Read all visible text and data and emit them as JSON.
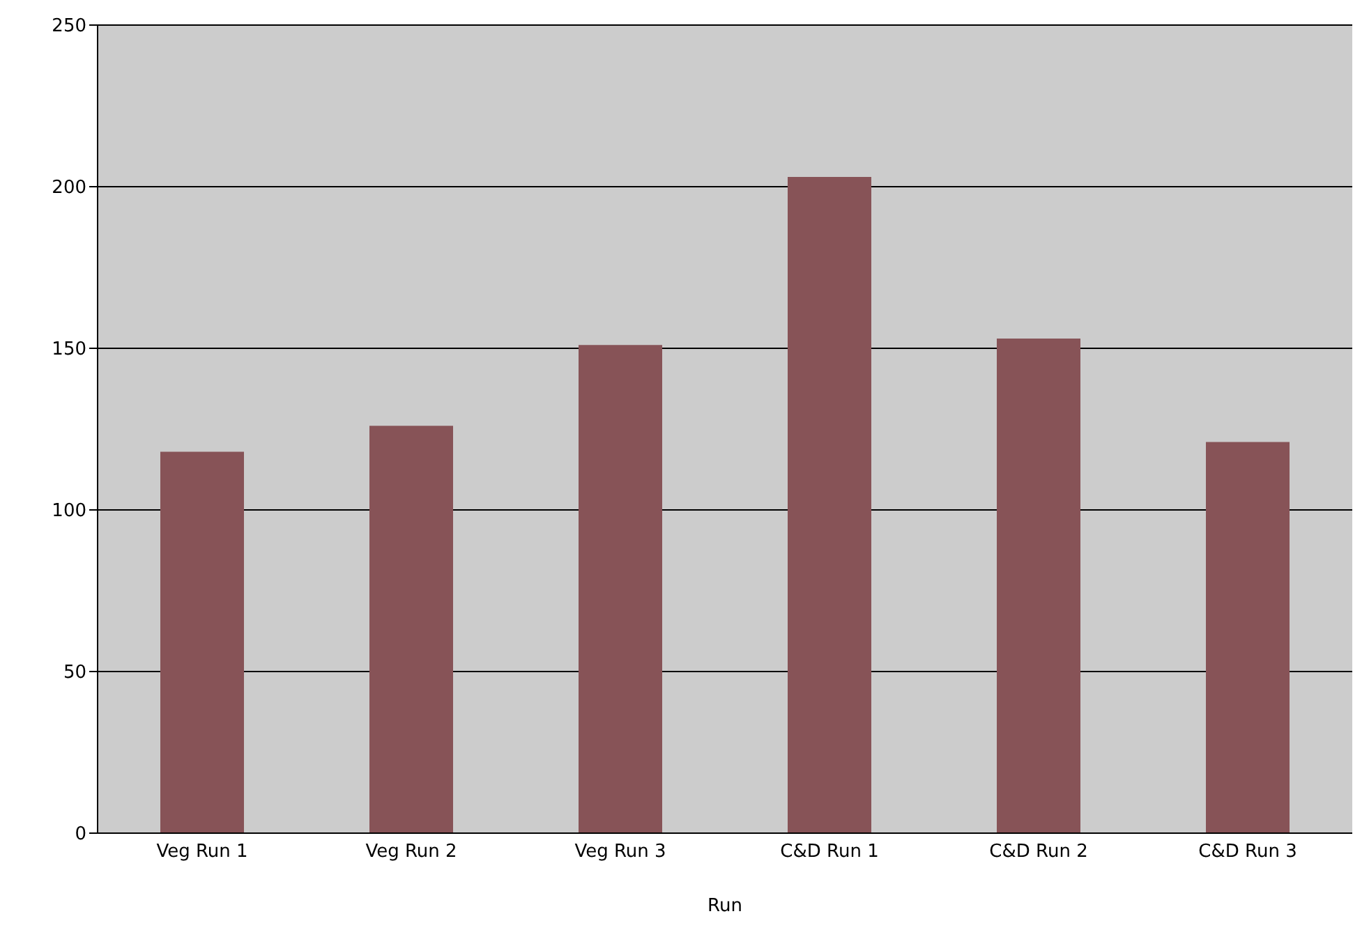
{
  "chart_data": {
    "type": "bar",
    "xlabel": "Run",
    "categories": [
      "Veg Run 1",
      "Veg Run 2",
      "Veg Run 3",
      "C&D Run 1",
      "C&D Run 2",
      "C&D Run 3"
    ],
    "values": [
      118,
      126,
      151,
      203,
      153,
      121
    ],
    "color": "#875357",
    "ylim": [
      0,
      250
    ],
    "yticks": [
      0,
      50,
      100,
      150,
      200,
      250
    ],
    "grid": "y"
  }
}
